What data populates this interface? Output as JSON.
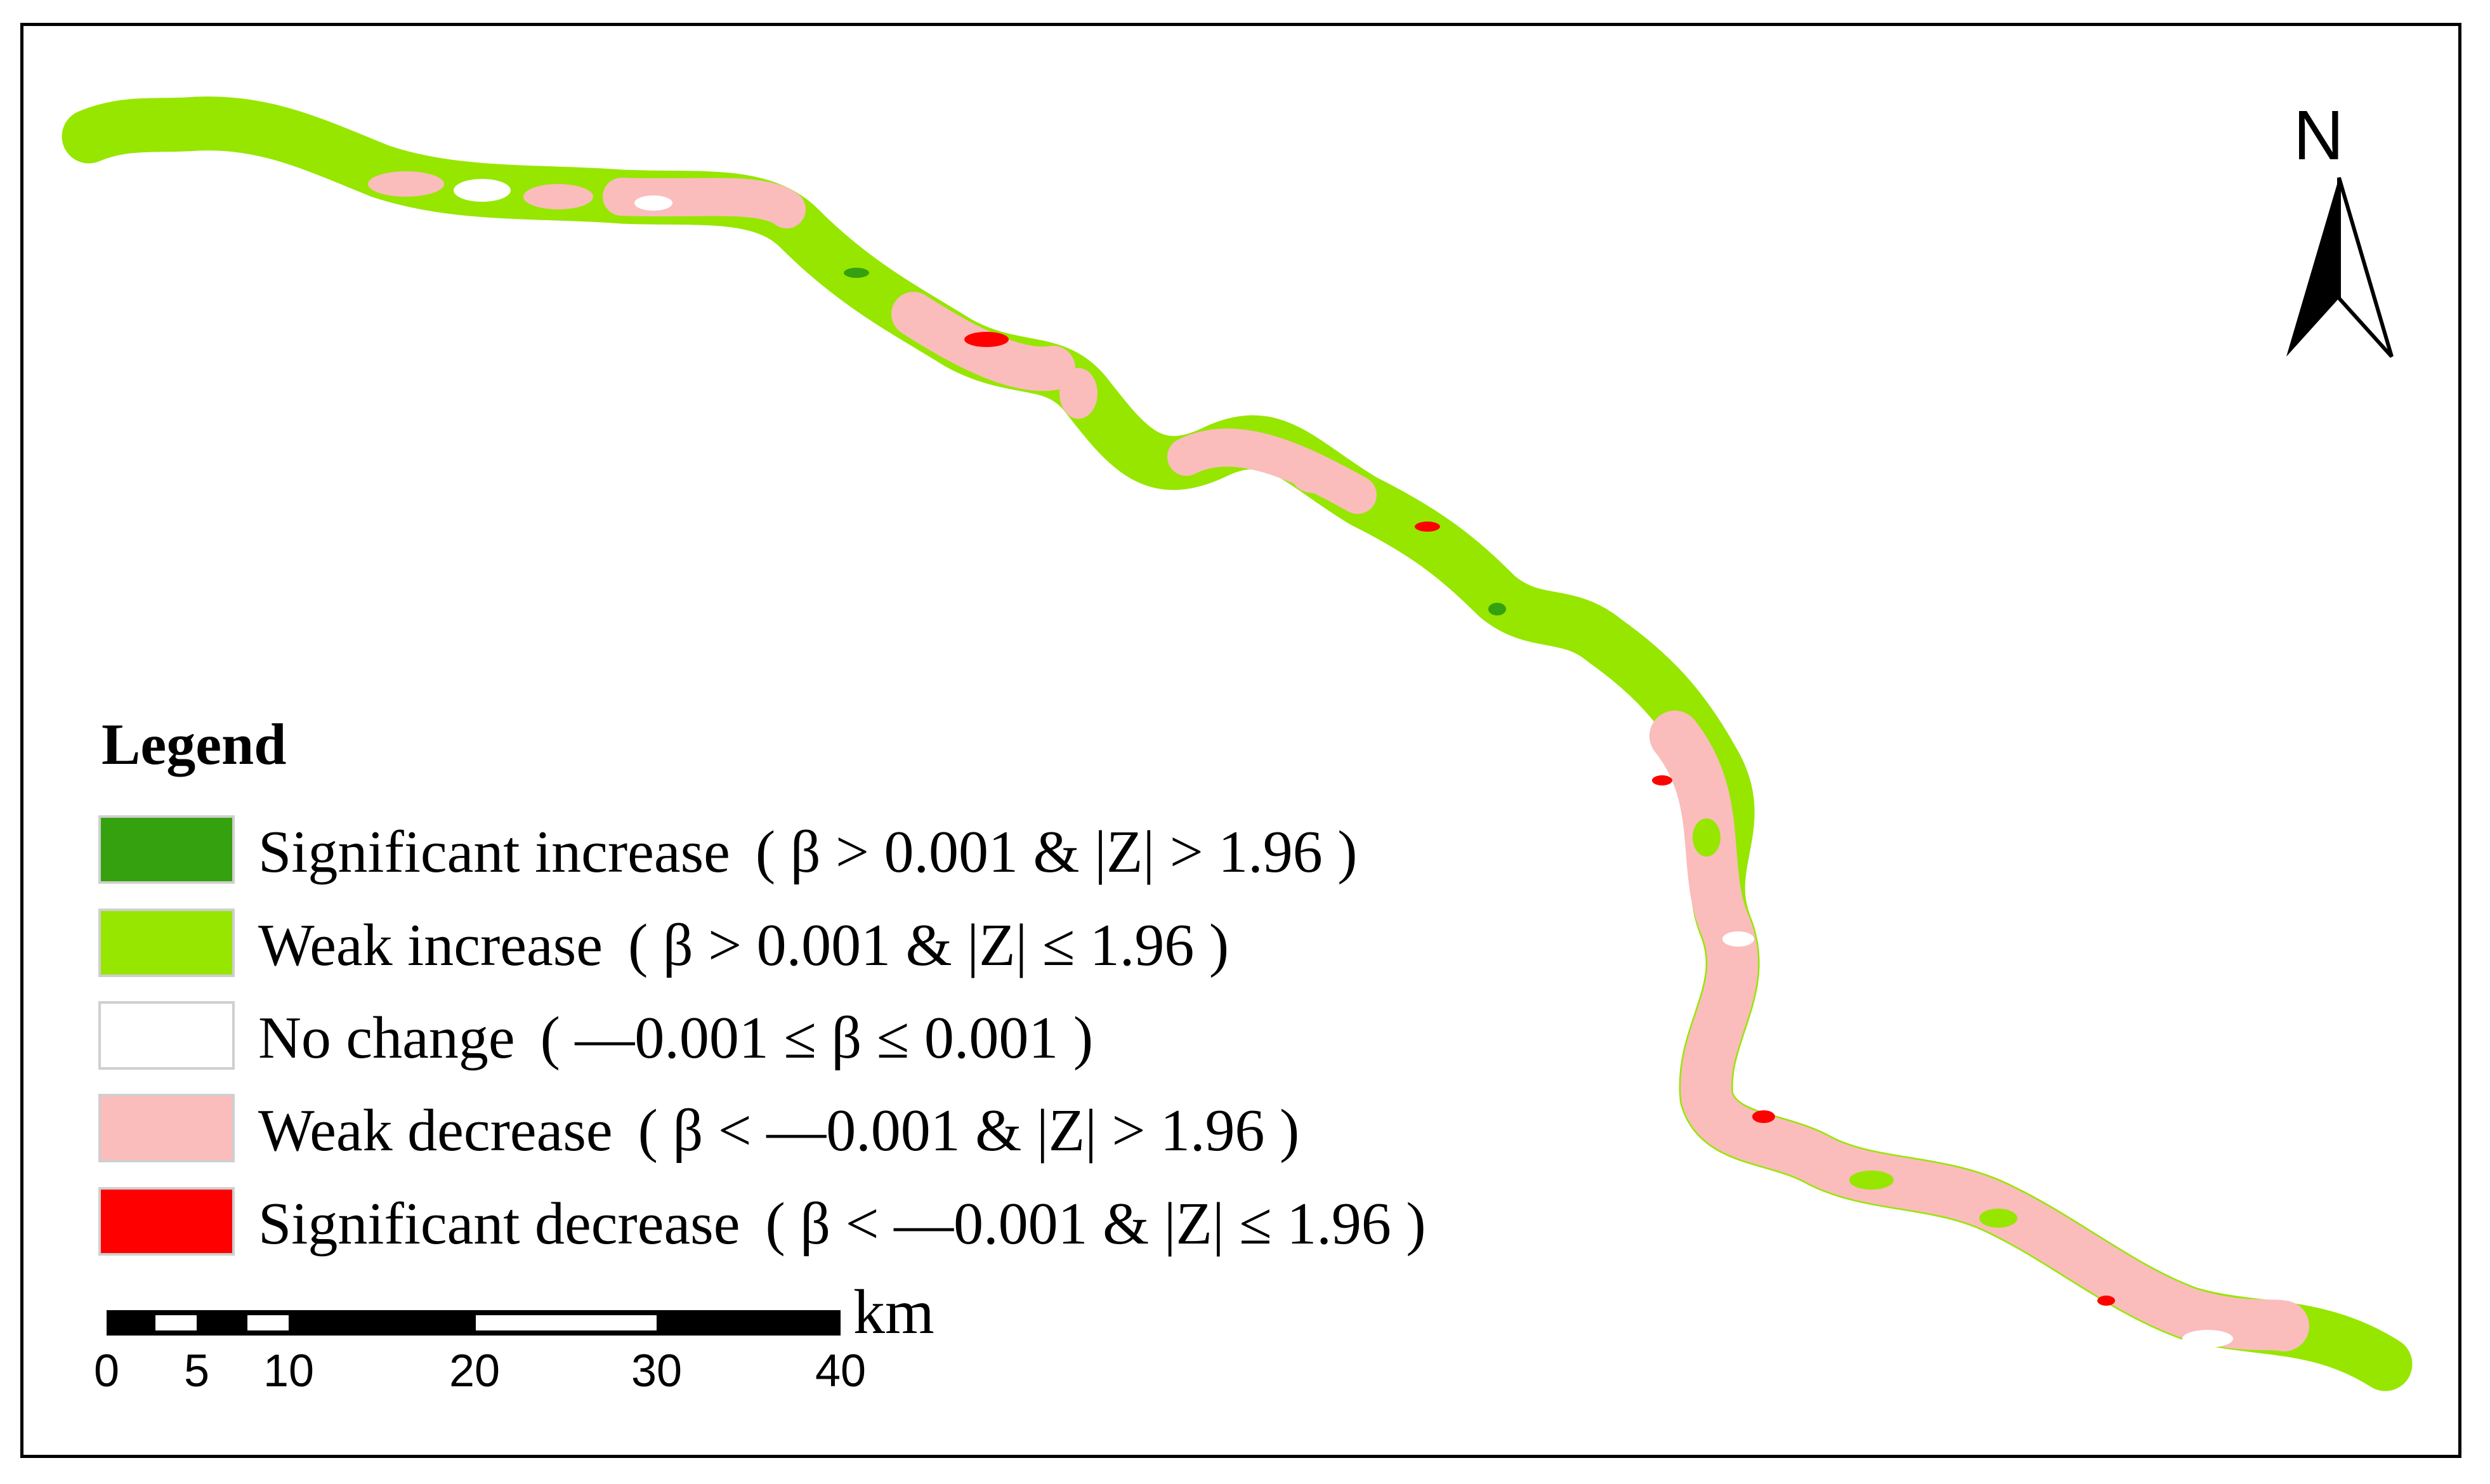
{
  "map": {
    "north_label": "N",
    "legend": {
      "title": "Legend",
      "items": [
        {
          "label": "Significant increase",
          "condition": "( β > 0.001 & |Z| > 1.96 )",
          "color": "#35a10e"
        },
        {
          "label": "Weak increase",
          "condition": "( β > 0.001 & |Z| ≤ 1.96 )",
          "color": "#96e600"
        },
        {
          "label": "No change",
          "condition": "( —0.001 ≤ β ≤ 0.001 )",
          "color": "#ffffff"
        },
        {
          "label": "Weak decrease",
          "condition": "( β < —0.001 & |Z| > 1.96 )",
          "color": "#fbbcbc"
        },
        {
          "label": "Significant decrease",
          "condition": "( β < —0.001 & |Z| ≤ 1.96 )",
          "color": "#ff0000"
        }
      ]
    },
    "scale_bar": {
      "unit": "km",
      "ticks": [
        "0",
        "5",
        "10",
        "20",
        "30",
        "40"
      ]
    },
    "colors": {
      "weak_increase": "#96e600",
      "weak_decrease": "#fbbcbc",
      "significant_increase": "#35a10e",
      "significant_decrease": "#ff0000"
    }
  }
}
